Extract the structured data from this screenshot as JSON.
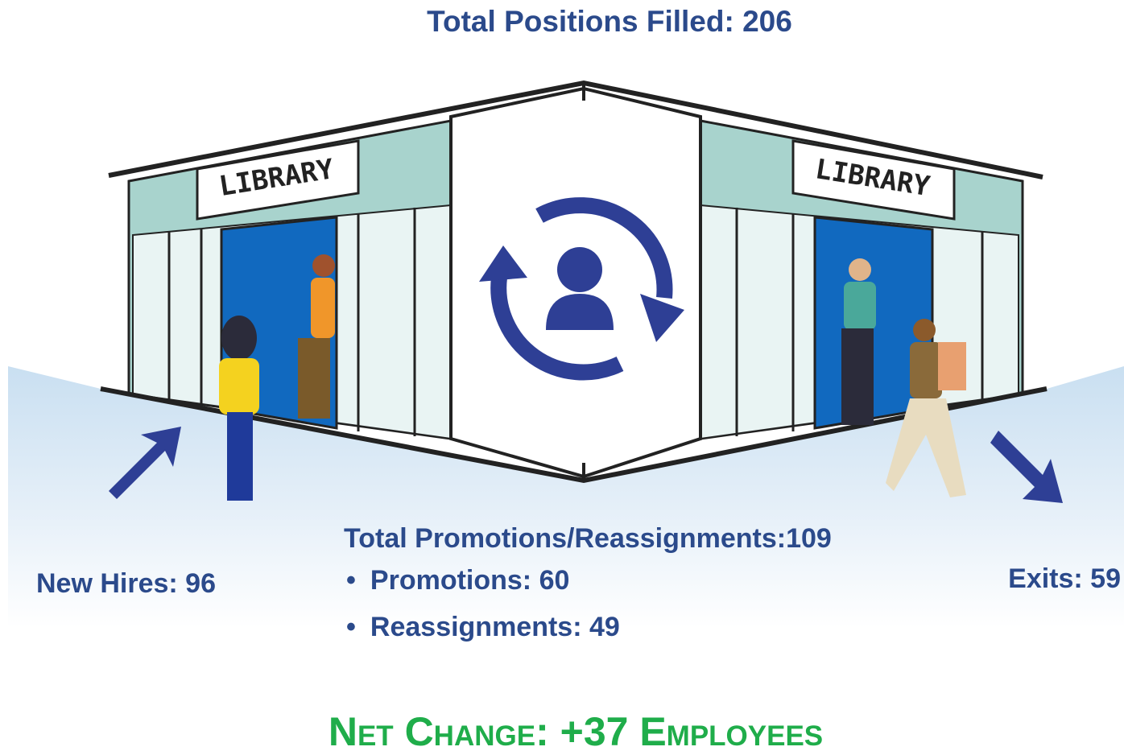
{
  "title": "Total Positions Filled: 206",
  "signs": [
    "LIBRARY",
    "LIBRARY"
  ],
  "new_hires": "New Hires: 96",
  "promotions": {
    "title": "Total Promotions/Reassignments:109",
    "items": [
      "Promotions: 60",
      "Reassignments: 49"
    ]
  },
  "exits": "Exits: 59",
  "net_change": "Net Change: +37 Employees"
}
